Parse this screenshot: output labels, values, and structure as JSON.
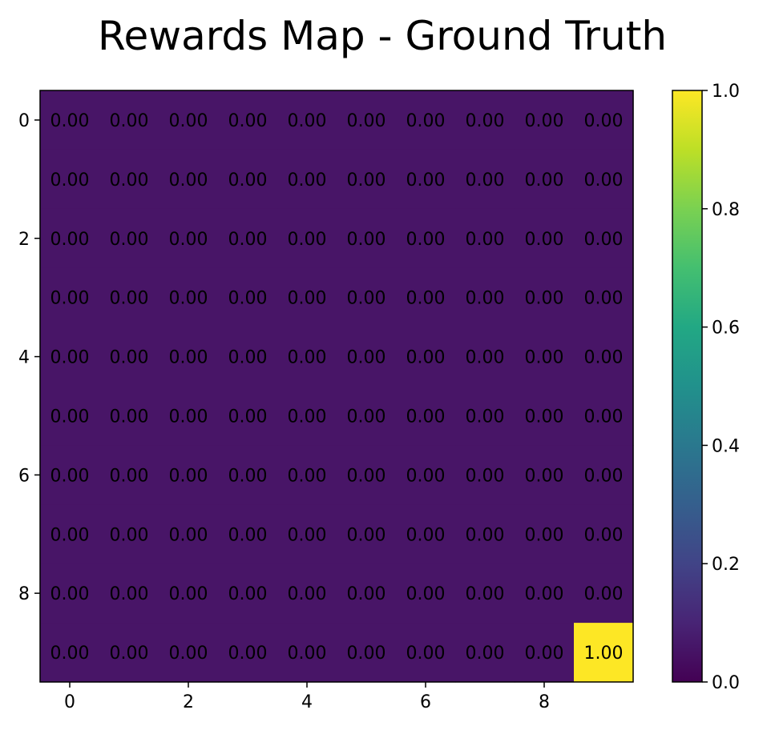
{
  "chart_data": {
    "type": "heatmap",
    "title": "Rewards Map - Ground Truth",
    "xlabel": "",
    "ylabel": "",
    "rows": 10,
    "cols": 10,
    "x_ticks": [
      0,
      2,
      4,
      6,
      8
    ],
    "y_ticks": [
      0,
      2,
      4,
      6,
      8
    ],
    "x_tick_labels": [
      "0",
      "2",
      "4",
      "6",
      "8"
    ],
    "y_tick_labels": [
      "0",
      "2",
      "4",
      "6",
      "8"
    ],
    "colorbar": {
      "colormap": "viridis",
      "vmin": 0.0,
      "vmax": 1.0,
      "ticks": [
        0.0,
        0.2,
        0.4,
        0.6,
        0.8,
        1.0
      ],
      "tick_labels": [
        "0.0",
        "0.2",
        "0.4",
        "0.6",
        "0.8",
        "1.0"
      ]
    },
    "value_format": "2 decimals",
    "values": [
      [
        0,
        0,
        0,
        0,
        0,
        0,
        0,
        0,
        0,
        0
      ],
      [
        0,
        0,
        0,
        0,
        0,
        0,
        0,
        0,
        0,
        0
      ],
      [
        0,
        0,
        0,
        0,
        0,
        0,
        0,
        0,
        0,
        0
      ],
      [
        0,
        0,
        0,
        0,
        0,
        0,
        0,
        0,
        0,
        0
      ],
      [
        0,
        0,
        0,
        0,
        0,
        0,
        0,
        0,
        0,
        0
      ],
      [
        0,
        0,
        0,
        0,
        0,
        0,
        0,
        0,
        0,
        0
      ],
      [
        0,
        0,
        0,
        0,
        0,
        0,
        0,
        0,
        0,
        0
      ],
      [
        0,
        0,
        0,
        0,
        0,
        0,
        0,
        0,
        0,
        0
      ],
      [
        0,
        0,
        0,
        0,
        0,
        0,
        0,
        0,
        0,
        0
      ],
      [
        0,
        0,
        0,
        0,
        0,
        0,
        0,
        0,
        0,
        1
      ]
    ],
    "grid": false
  }
}
